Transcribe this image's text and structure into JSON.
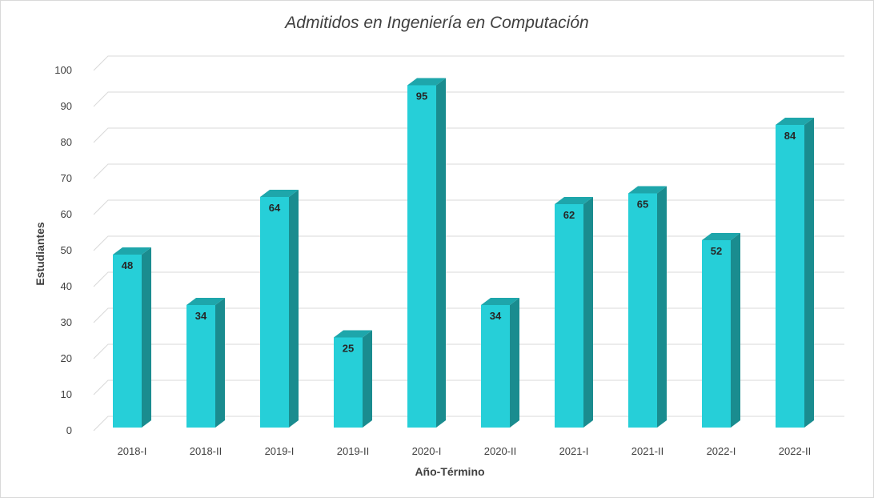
{
  "chart_data": {
    "type": "bar",
    "title": "Admitidos en Ingeniería en Computación",
    "xlabel": "Año-Término",
    "ylabel": "Estudiantes",
    "categories": [
      "2018-I",
      "2018-II",
      "2019-I",
      "2019-II",
      "2020-I",
      "2020-II",
      "2021-I",
      "2021-II",
      "2022-I",
      "2022-II"
    ],
    "values": [
      48,
      34,
      64,
      25,
      95,
      34,
      62,
      65,
      52,
      84
    ],
    "ylim": [
      0,
      100
    ],
    "yticks": [
      "0",
      "10",
      "20",
      "30",
      "40",
      "50",
      "60",
      "70",
      "80",
      "90",
      "100"
    ],
    "grid": true,
    "legend": "none",
    "colors": {
      "bar_front": "#26CFD8",
      "bar_side": "#1A8C8F",
      "bar_top": "#1EA6AB"
    }
  }
}
